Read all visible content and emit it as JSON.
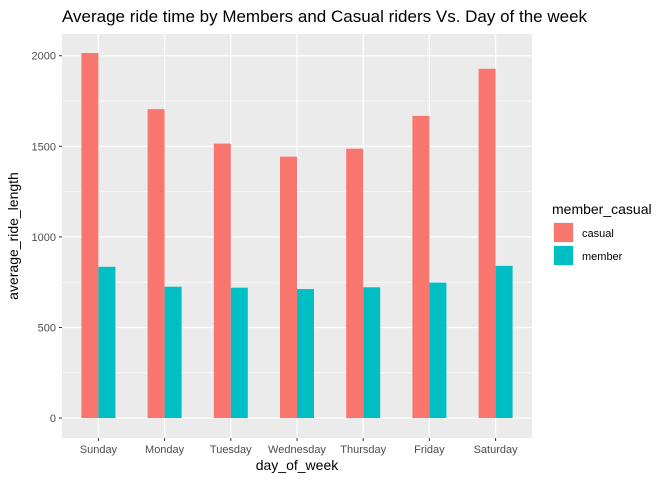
{
  "chart_data": {
    "type": "bar",
    "title": "Average ride time by Members and Casual riders Vs. Day of the week",
    "xlabel": "day_of_week",
    "ylabel": "average_ride_length",
    "categories": [
      "Sunday",
      "Monday",
      "Tuesday",
      "Wednesday",
      "Thursday",
      "Friday",
      "Saturday"
    ],
    "series": [
      {
        "name": "casual",
        "color": "#F8766D",
        "values": [
          2015,
          1705,
          1515,
          1443,
          1487,
          1668,
          1928
        ]
      },
      {
        "name": "member",
        "color": "#00BFC4",
        "values": [
          835,
          725,
          720,
          712,
          722,
          748,
          840
        ]
      }
    ],
    "ylim": [
      -110,
      2120
    ],
    "yticks": [
      0,
      500,
      1000,
      1500,
      2000
    ],
    "legend": {
      "title": "member_casual",
      "position": "right"
    },
    "grid": true,
    "panel_background": "#EBEBEB"
  }
}
